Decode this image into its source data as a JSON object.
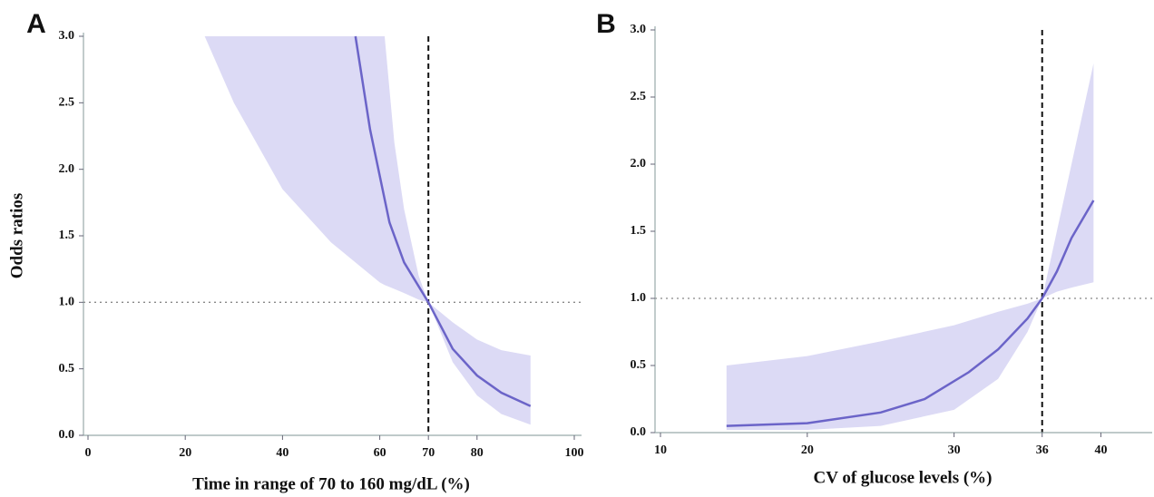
{
  "chart_data": [
    {
      "type": "line",
      "panel_label": "A",
      "x_label": "Time in range of 70 to 160 mg/dL (%)",
      "y_label": "Odds ratios",
      "xlim": [
        0,
        100
      ],
      "ylim": [
        0,
        3
      ],
      "xticks": [
        0,
        20,
        40,
        60,
        70,
        80,
        100
      ],
      "yticks": [
        {
          "value": 0,
          "label": "0.0"
        },
        0.5,
        {
          "value": 1,
          "label": "1.0"
        },
        1.5,
        {
          "value": 2,
          "label": "2.0"
        },
        2.5,
        {
          "value": 3,
          "label": "3.0"
        }
      ],
      "x": [
        55,
        58,
        60,
        62,
        65,
        70,
        75,
        80,
        85,
        91
      ],
      "values": [
        3.0,
        2.3,
        1.95,
        1.6,
        1.3,
        1.0,
        0.65,
        0.45,
        0.32,
        0.22
      ],
      "color": "#6b64c8",
      "band": {
        "color": "#dcdaf5",
        "x": [
          24,
          30,
          40,
          50,
          55,
          60,
          61,
          63,
          65,
          68,
          70,
          75,
          80,
          85,
          91
        ],
        "lower": [
          3.0,
          2.5,
          1.85,
          1.45,
          1.3,
          1.15,
          1.13,
          1.1,
          1.07,
          1.02,
          1.0,
          0.55,
          0.3,
          0.16,
          0.08
        ],
        "upper": [
          3,
          3,
          3,
          3,
          3,
          3,
          3,
          2.2,
          1.7,
          1.2,
          1.0,
          0.85,
          0.72,
          0.64,
          0.6
        ]
      },
      "vline": 70,
      "hline": 1
    },
    {
      "type": "line",
      "panel_label": "B",
      "x_label": "CV of glucose levels (%)",
      "xlim": [
        10,
        43
      ],
      "ylim": [
        0,
        3
      ],
      "xticks": [
        10,
        20,
        30,
        36,
        40
      ],
      "yticks": [
        {
          "value": 0,
          "label": "0.0"
        },
        0.5,
        {
          "value": 1,
          "label": "1.0"
        },
        1.5,
        {
          "value": 2,
          "label": "2.0"
        },
        2.5,
        {
          "value": 3,
          "label": "3.0"
        }
      ],
      "x": [
        14.5,
        20,
        25,
        28,
        31,
        33,
        35,
        36,
        37,
        38,
        39.5
      ],
      "values": [
        0.05,
        0.07,
        0.15,
        0.25,
        0.45,
        0.62,
        0.85,
        1.0,
        1.2,
        1.45,
        1.73
      ],
      "color": "#6b64c8",
      "band": {
        "color": "#dcdaf5",
        "x": [
          14.5,
          20,
          25,
          30,
          33,
          35,
          36,
          37,
          38,
          39.5
        ],
        "lower": [
          0.02,
          0.02,
          0.05,
          0.17,
          0.4,
          0.75,
          1,
          1.05,
          1.08,
          1.12
        ],
        "upper": [
          0.5,
          0.57,
          0.68,
          0.8,
          0.9,
          0.96,
          1,
          1.5,
          2.0,
          2.75
        ]
      },
      "vline": 36,
      "hline": 1
    }
  ]
}
